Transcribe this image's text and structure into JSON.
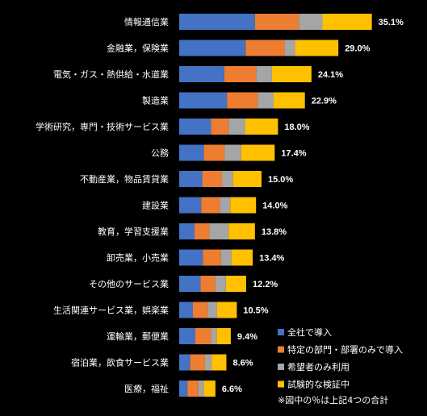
{
  "chart_data": {
    "type": "bar",
    "orientation": "horizontal",
    "stacked": true,
    "categories": [
      "情報通信業",
      "金融業，保険業",
      "電気・ガス・熱供給・水道業",
      "製造業",
      "学術研究，専門・技術サービス業",
      "公務",
      "不動産業，物品賃貸業",
      "建設業",
      "教育，学習支援業",
      "卸売業，小売業",
      "その他のサービス業",
      "生活関連サービス業，娯楽業",
      "運輸業，郵便業",
      "宿泊業，飲食サービス業",
      "医療，福祉"
    ],
    "series": [
      {
        "name": "全社で導入",
        "color": "#4472C4",
        "values": [
          13.8,
          12.1,
          8.2,
          8.7,
          5.8,
          4.5,
          4.2,
          4.0,
          2.8,
          4.3,
          3.9,
          2.5,
          2.9,
          2.0,
          1.5
        ]
      },
      {
        "name": "特定の部門・部署のみで導入",
        "color": "#ED7D31",
        "values": [
          8.0,
          7.1,
          5.8,
          5.6,
          3.2,
          3.8,
          3.6,
          3.4,
          2.7,
          3.3,
          2.7,
          2.7,
          2.9,
          2.7,
          2.0
        ]
      },
      {
        "name": "希望者のみ利用",
        "color": "#A5A5A5",
        "values": [
          4.3,
          1.9,
          2.9,
          2.9,
          3.0,
          3.0,
          2.0,
          1.9,
          3.5,
          1.9,
          1.9,
          1.7,
          1.0,
          1.2,
          1.0
        ]
      },
      {
        "name": "試験的な検証中",
        "color": "#FFC000",
        "values": [
          9.0,
          7.9,
          7.2,
          5.7,
          6.0,
          6.1,
          5.2,
          4.7,
          4.8,
          3.9,
          3.7,
          3.6,
          2.6,
          2.7,
          2.1
        ]
      }
    ],
    "totals": [
      "35.1%",
      "29.0%",
      "24.1%",
      "22.9%",
      "18.0%",
      "17.4%",
      "15.0%",
      "14.0%",
      "13.8%",
      "13.4%",
      "12.2%",
      "10.5%",
      "9.4%",
      "8.6%",
      "6.6%"
    ],
    "xlim": [
      0,
      40
    ],
    "legend_position": "bottom-right",
    "note": "※図中の％は上記4つの合計",
    "grid": false,
    "background": "#000000"
  }
}
